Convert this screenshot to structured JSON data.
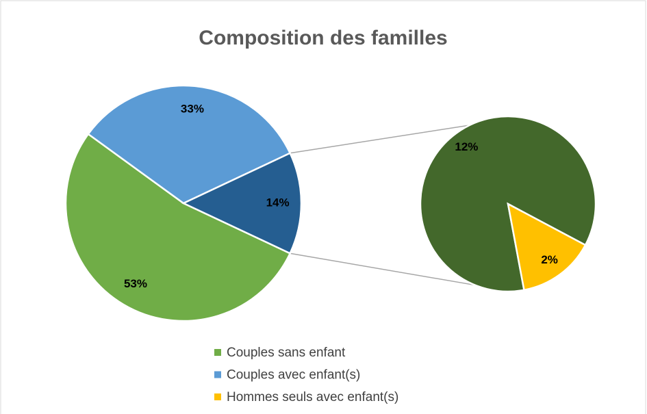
{
  "chart_data": {
    "type": "pie-of-pie",
    "title": "Composition des familles",
    "primary": {
      "values": [
        53,
        33,
        14
      ],
      "value_labels": [
        "53%",
        "33%",
        "14%"
      ],
      "colors": [
        "#70ad47",
        "#5b9bd5",
        "#255e91"
      ]
    },
    "secondary": {
      "values": [
        12,
        2
      ],
      "value_labels": [
        "12%",
        "2%"
      ],
      "colors": [
        "#43682b",
        "#ffc000"
      ]
    },
    "legend": [
      {
        "name": "Couples sans enfant",
        "color": "#70ad47"
      },
      {
        "name": "Couples avec enfant(s)",
        "color": "#5b9bd5"
      },
      {
        "name": "Hommes seuls avec enfant(s)",
        "color": "#ffc000"
      }
    ]
  }
}
